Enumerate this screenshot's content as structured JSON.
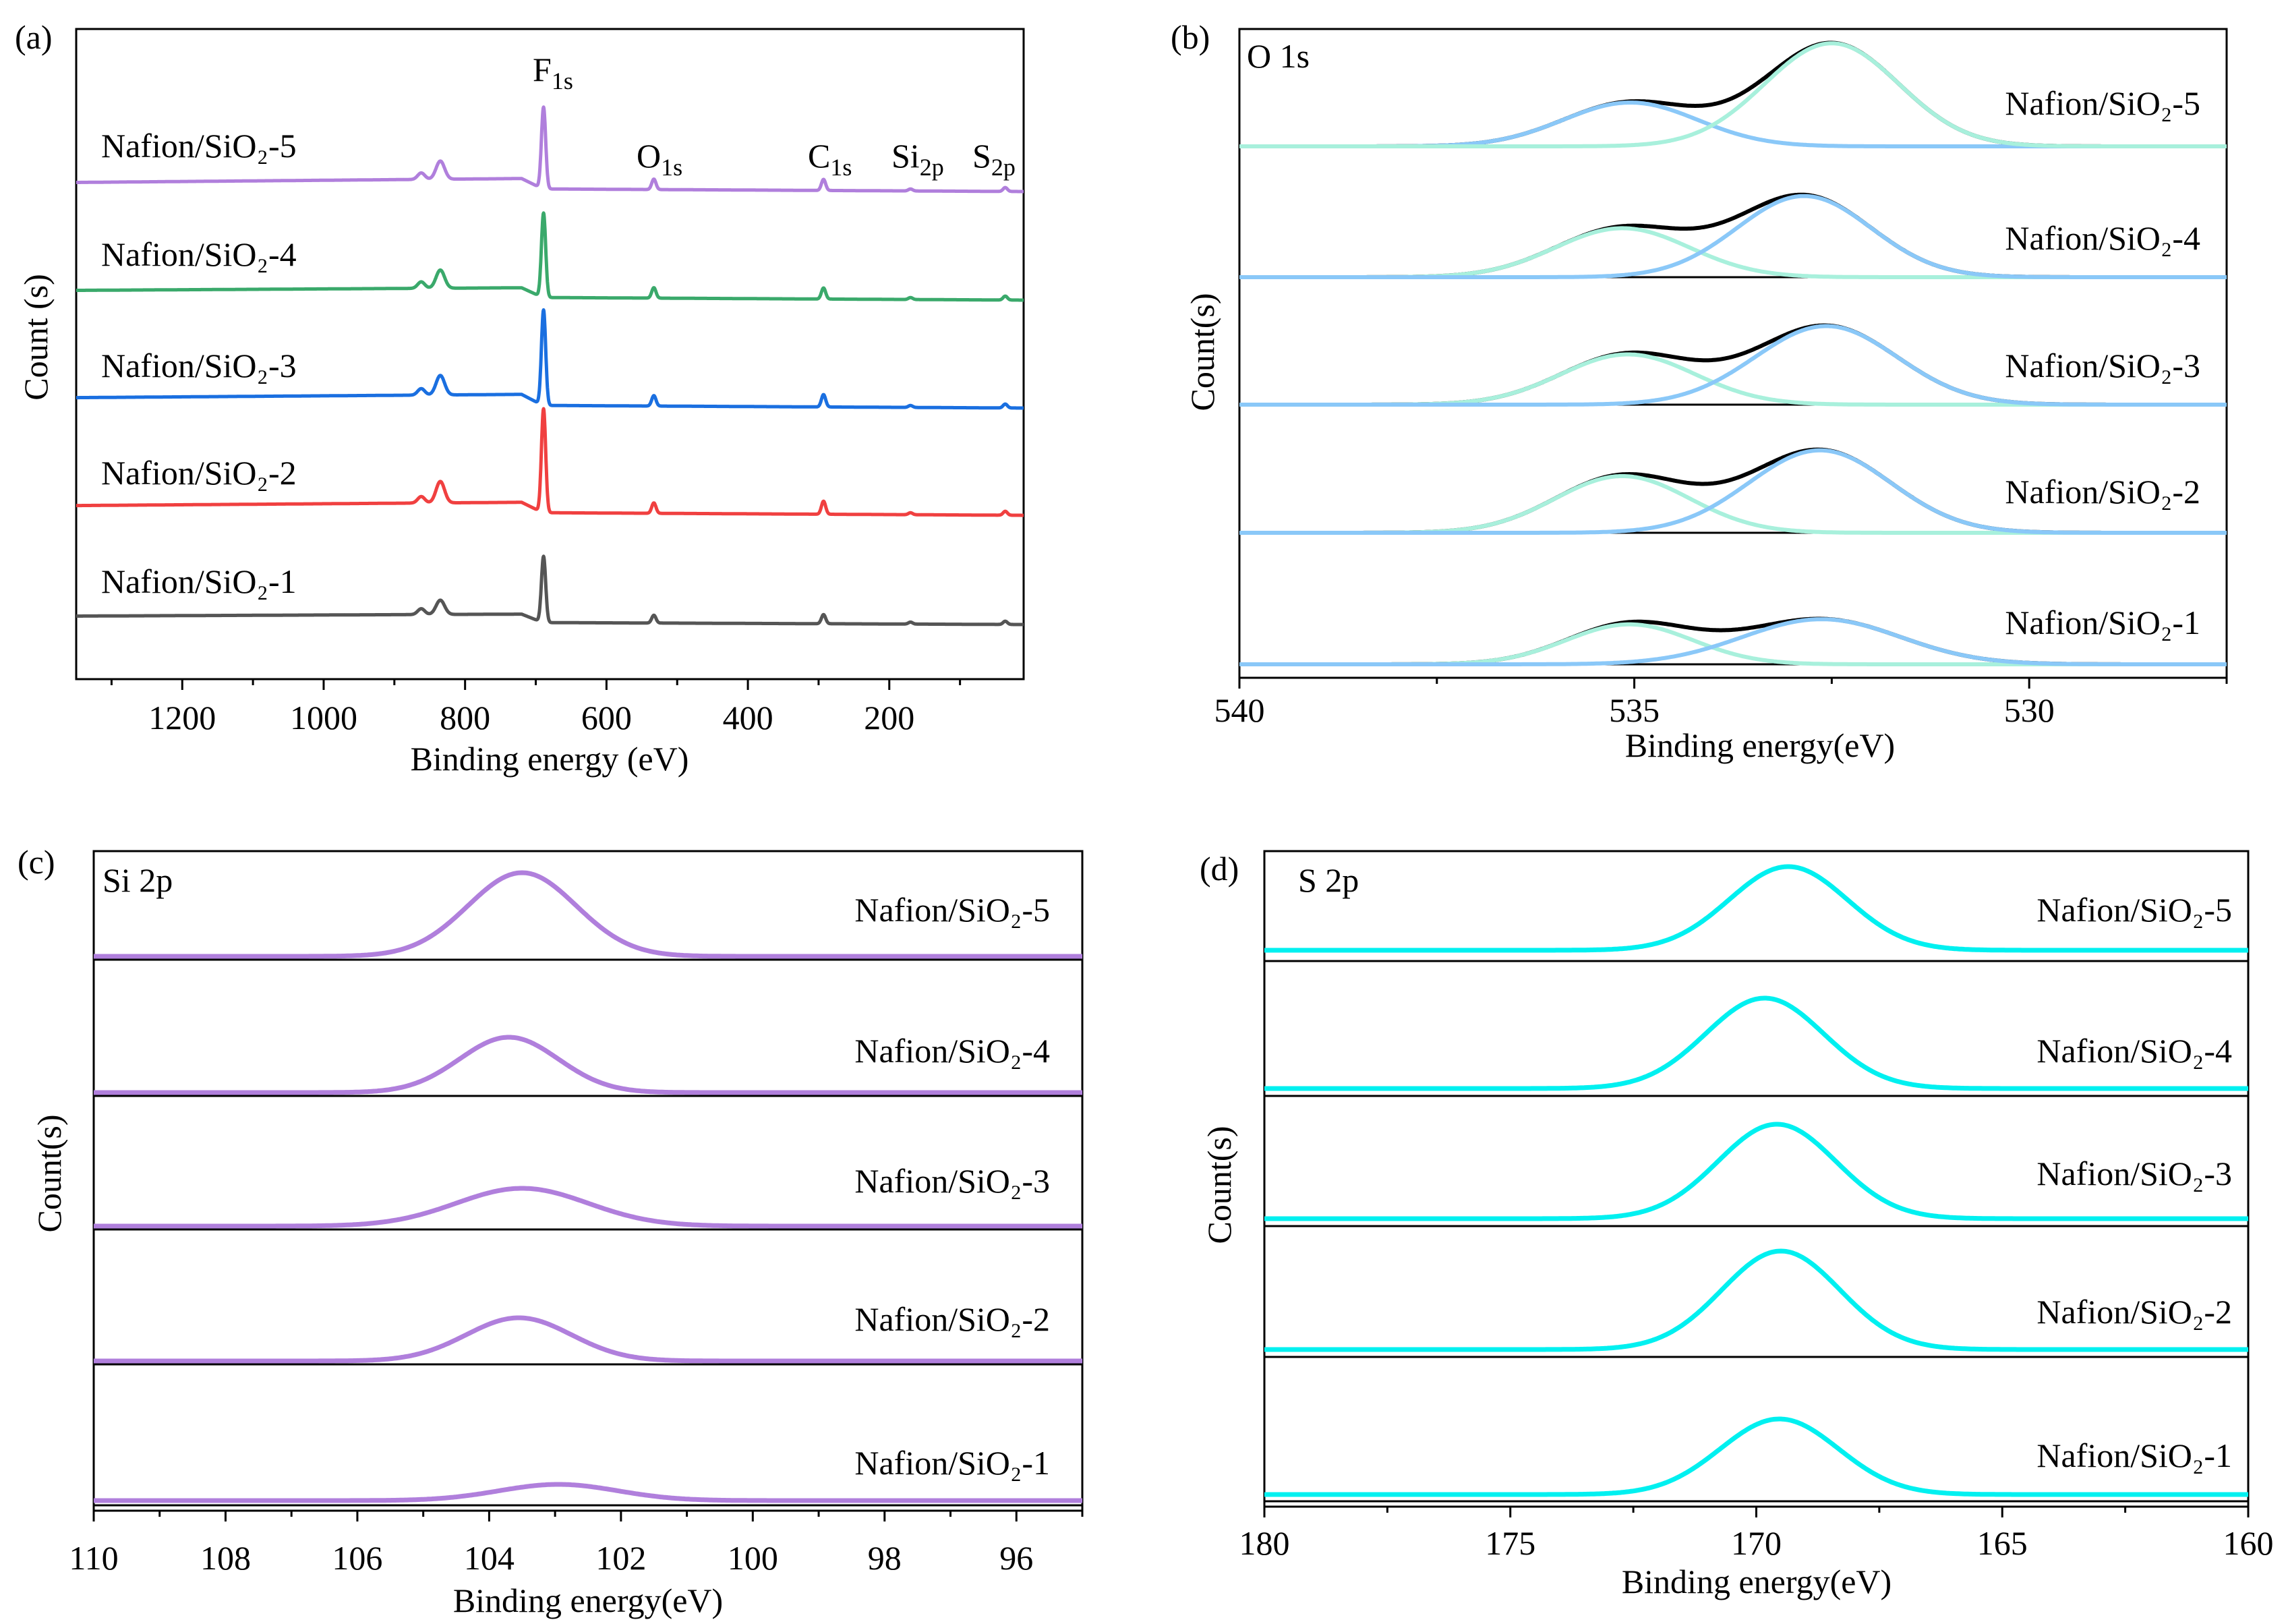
{
  "chart_data": [
    {
      "type": "line",
      "panel_label": "(a)",
      "xlabel": "Binding energy (eV)",
      "ylabel": "Count (s)",
      "xlim": [
        1350,
        10
      ],
      "ylim": [
        0,
        100
      ],
      "x_reversed": true,
      "xticks": [
        1200,
        1000,
        800,
        600,
        400,
        200
      ],
      "xticks_minor": [
        1300,
        1100,
        900,
        700,
        500,
        300,
        100
      ],
      "annotations": [
        {
          "main": "F",
          "sub": "1s",
          "x": 689
        },
        {
          "main": "O",
          "sub": "1s",
          "x": 533
        },
        {
          "main": "C",
          "sub": "1s",
          "x": 293
        },
        {
          "main": "Si",
          "sub": "2p",
          "x": 170
        },
        {
          "main": "S",
          "sub": "2p",
          "x": 36
        }
      ],
      "series": [
        {
          "name": "Nafion/SiO₂-5",
          "color": "#b07fdc",
          "baseline": [
            [
              1350,
              76.4
            ],
            [
              720,
              77.0
            ],
            [
              690,
              75.4
            ],
            [
              10,
              75.0
            ]
          ],
          "peaks": [
            {
              "x": 689,
              "h": 12.6,
              "w": 3
            },
            {
              "x": 835,
              "h": 2.8,
              "w": 6
            },
            {
              "x": 862,
              "h": 1.0,
              "w": 5
            },
            {
              "x": 533,
              "h": 1.6,
              "w": 3
            },
            {
              "x": 293,
              "h": 1.7,
              "w": 3
            },
            {
              "x": 170,
              "h": 0.3,
              "w": 3
            },
            {
              "x": 36,
              "h": 0.6,
              "w": 3
            }
          ]
        },
        {
          "name": "Nafion/SiO₂-4",
          "color": "#3aa96b",
          "baseline": [
            [
              1350,
              59.8
            ],
            [
              720,
              60.2
            ],
            [
              690,
              58.7
            ],
            [
              10,
              58.3
            ]
          ],
          "peaks": [
            {
              "x": 689,
              "h": 13.0,
              "w": 3
            },
            {
              "x": 835,
              "h": 2.8,
              "w": 6
            },
            {
              "x": 862,
              "h": 1.0,
              "w": 5
            },
            {
              "x": 533,
              "h": 1.6,
              "w": 3
            },
            {
              "x": 293,
              "h": 1.7,
              "w": 3
            },
            {
              "x": 170,
              "h": 0.3,
              "w": 3
            },
            {
              "x": 36,
              "h": 0.6,
              "w": 3
            }
          ]
        },
        {
          "name": "Nafion/SiO₂-3",
          "color": "#1a6fe0",
          "baseline": [
            [
              1350,
              43.3
            ],
            [
              720,
              43.8
            ],
            [
              690,
              42.1
            ],
            [
              10,
              41.7
            ]
          ],
          "peaks": [
            {
              "x": 689,
              "h": 14.7,
              "w": 3
            },
            {
              "x": 835,
              "h": 3.0,
              "w": 6
            },
            {
              "x": 862,
              "h": 1.0,
              "w": 5
            },
            {
              "x": 533,
              "h": 1.6,
              "w": 3
            },
            {
              "x": 293,
              "h": 1.9,
              "w": 3
            },
            {
              "x": 170,
              "h": 0.3,
              "w": 3
            },
            {
              "x": 36,
              "h": 0.6,
              "w": 3
            }
          ]
        },
        {
          "name": "Nafion/SiO₂-2",
          "color": "#f04040",
          "baseline": [
            [
              1350,
              26.7
            ],
            [
              720,
              27.2
            ],
            [
              690,
              25.6
            ],
            [
              10,
              25.2
            ]
          ],
          "peaks": [
            {
              "x": 689,
              "h": 16.0,
              "w": 3
            },
            {
              "x": 835,
              "h": 3.3,
              "w": 6
            },
            {
              "x": 862,
              "h": 1.0,
              "w": 5
            },
            {
              "x": 533,
              "h": 1.6,
              "w": 3
            },
            {
              "x": 293,
              "h": 2.0,
              "w": 3
            },
            {
              "x": 170,
              "h": 0.3,
              "w": 3
            },
            {
              "x": 36,
              "h": 0.6,
              "w": 3
            }
          ]
        },
        {
          "name": "Nafion/SiO₂-1",
          "color": "#555555",
          "baseline": [
            [
              1350,
              9.7
            ],
            [
              720,
              10.0
            ],
            [
              690,
              8.7
            ],
            [
              10,
              8.4
            ]
          ],
          "peaks": [
            {
              "x": 689,
              "h": 10.2,
              "w": 3
            },
            {
              "x": 835,
              "h": 2.2,
              "w": 6
            },
            {
              "x": 862,
              "h": 0.9,
              "w": 5
            },
            {
              "x": 533,
              "h": 1.2,
              "w": 3
            },
            {
              "x": 293,
              "h": 1.4,
              "w": 3
            },
            {
              "x": 170,
              "h": 0.3,
              "w": 3
            },
            {
              "x": 36,
              "h": 0.5,
              "w": 3
            }
          ]
        }
      ]
    },
    {
      "type": "line",
      "panel_label": "(b)",
      "title": "O 1s",
      "xlabel": "Binding energy(eV)",
      "ylabel": "Count(s)",
      "xlim": [
        540,
        527.5
      ],
      "x_reversed": true,
      "stacked": true,
      "xticks": [
        540,
        535,
        530
      ],
      "xticks_minor": [
        537.5,
        532.5,
        527.5
      ],
      "envelope_color": "#000000",
      "series": [
        {
          "name": "Nafion/SiO₂-5",
          "components": [
            {
              "x": 535.05,
              "h": 0.34,
              "sigma": 0.85,
              "color": "#8ac8f8"
            },
            {
              "x": 532.5,
              "h": 0.8,
              "sigma": 0.85,
              "color": "#a8f0dc"
            }
          ]
        },
        {
          "name": "Nafion/SiO₂-4",
          "components": [
            {
              "x": 535.15,
              "h": 0.38,
              "sigma": 0.85,
              "color": "#a8f0dc"
            },
            {
              "x": 532.85,
              "h": 0.63,
              "sigma": 0.85,
              "color": "#8ac8f8"
            }
          ]
        },
        {
          "name": "Nafion/SiO₂-3",
          "components": [
            {
              "x": 535.08,
              "h": 0.39,
              "sigma": 0.85,
              "color": "#a8f0dc"
            },
            {
              "x": 532.57,
              "h": 0.61,
              "sigma": 0.9,
              "color": "#8ac8f8"
            }
          ]
        },
        {
          "name": "Nafion/SiO₂-2",
          "components": [
            {
              "x": 535.15,
              "h": 0.44,
              "sigma": 0.85,
              "color": "#a8f0dc"
            },
            {
              "x": 532.65,
              "h": 0.64,
              "sigma": 0.9,
              "color": "#8ac8f8"
            }
          ]
        },
        {
          "name": "Nafion/SiO₂-1",
          "components": [
            {
              "x": 535.06,
              "h": 0.31,
              "sigma": 0.8,
              "color": "#a8f0dc"
            },
            {
              "x": 532.63,
              "h": 0.35,
              "sigma": 1.0,
              "color": "#8ac8f8"
            }
          ]
        }
      ]
    },
    {
      "type": "line",
      "panel_label": "(c)",
      "title": "Si 2p",
      "xlabel": "Binding energy(eV)",
      "ylabel": "Count(s)",
      "xlim": [
        110,
        95
      ],
      "x_reversed": true,
      "stacked": true,
      "xticks": [
        110,
        108,
        106,
        104,
        102,
        100,
        98,
        96
      ],
      "xticks_minor": [
        109,
        107,
        105,
        103,
        101,
        99,
        97,
        95
      ],
      "color": "#b07fdc",
      "series": [
        {
          "name": "Nafion/SiO₂-5",
          "peak_x": 103.5,
          "height": 0.62,
          "sigma": 0.82
        },
        {
          "name": "Nafion/SiO₂-4",
          "peak_x": 103.7,
          "height": 0.41,
          "sigma": 0.75
        },
        {
          "name": "Nafion/SiO₂-3",
          "peak_x": 103.5,
          "height": 0.28,
          "sigma": 1.0
        },
        {
          "name": "Nafion/SiO₂-2",
          "peak_x": 103.55,
          "height": 0.32,
          "sigma": 0.8
        },
        {
          "name": "Nafion/SiO₂-1",
          "peak_x": 102.95,
          "height": 0.12,
          "sigma": 0.9
        }
      ]
    },
    {
      "type": "line",
      "panel_label": "(d)",
      "title": "S 2p",
      "xlabel": "Binding energy(eV)",
      "ylabel": "Count(s)",
      "xlim": [
        180,
        160
      ],
      "x_reversed": true,
      "stacked": true,
      "xticks": [
        180,
        175,
        170,
        165,
        160
      ],
      "xticks_minor": [
        177.5,
        172.5,
        167.5,
        162.5
      ],
      "color": "#00f0f0",
      "series": [
        {
          "name": "Nafion/SiO₂-5",
          "peak_x": 169.35,
          "height": 0.62,
          "sigma": 1.2
        },
        {
          "name": "Nafion/SiO₂-4",
          "peak_x": 169.83,
          "height": 0.67,
          "sigma": 1.2
        },
        {
          "name": "Nafion/SiO₂-3",
          "peak_x": 169.58,
          "height": 0.7,
          "sigma": 1.2
        },
        {
          "name": "Nafion/SiO₂-2",
          "peak_x": 169.5,
          "height": 0.73,
          "sigma": 1.2
        },
        {
          "name": "Nafion/SiO₂-1",
          "peak_x": 169.53,
          "height": 0.56,
          "sigma": 1.2
        }
      ]
    }
  ]
}
